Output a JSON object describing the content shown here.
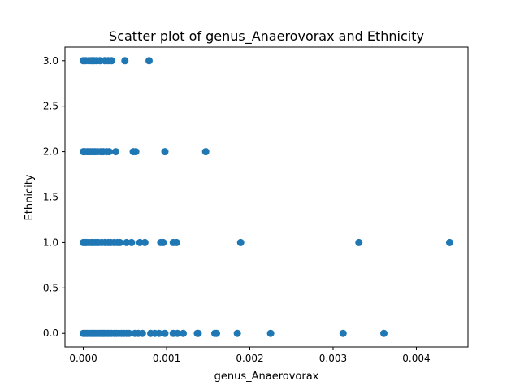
{
  "chart_data": {
    "type": "scatter",
    "title": "Scatter plot of genus_Anaerovorax and Ethnicity",
    "xlabel": "genus_Anaerovorax",
    "ylabel": "Ethnicity",
    "xlim": [
      -0.00022,
      0.00462
    ],
    "ylim": [
      -0.15,
      3.15
    ],
    "x_ticks": [
      0.0,
      0.001,
      0.002,
      0.003,
      0.004
    ],
    "x_tick_labels": [
      "0.000",
      "0.001",
      "0.002",
      "0.003",
      "0.004"
    ],
    "y_ticks": [
      0.0,
      0.5,
      1.0,
      1.5,
      2.0,
      2.5,
      3.0
    ],
    "y_tick_labels": [
      "0.0",
      "0.5",
      "1.0",
      "1.5",
      "2.0",
      "2.5",
      "3.0"
    ],
    "grid": false,
    "color": "#1f77b4",
    "points": [
      {
        "x": 0.0,
        "y": 3
      },
      {
        "x": 3e-05,
        "y": 3
      },
      {
        "x": 7e-05,
        "y": 3
      },
      {
        "x": 0.0001,
        "y": 3
      },
      {
        "x": 0.00013,
        "y": 3
      },
      {
        "x": 0.00016,
        "y": 3
      },
      {
        "x": 0.0002,
        "y": 3
      },
      {
        "x": 0.00026,
        "y": 3
      },
      {
        "x": 0.0003,
        "y": 3
      },
      {
        "x": 0.00034,
        "y": 3
      },
      {
        "x": 0.0005,
        "y": 3
      },
      {
        "x": 0.00079,
        "y": 3
      },
      {
        "x": 0.0,
        "y": 2
      },
      {
        "x": 2e-05,
        "y": 2
      },
      {
        "x": 5e-05,
        "y": 2
      },
      {
        "x": 8e-05,
        "y": 2
      },
      {
        "x": 0.00011,
        "y": 2
      },
      {
        "x": 0.00014,
        "y": 2
      },
      {
        "x": 0.00017,
        "y": 2
      },
      {
        "x": 0.00021,
        "y": 2
      },
      {
        "x": 0.00024,
        "y": 2
      },
      {
        "x": 0.00028,
        "y": 2
      },
      {
        "x": 0.00031,
        "y": 2
      },
      {
        "x": 0.00039,
        "y": 2
      },
      {
        "x": 0.0006,
        "y": 2
      },
      {
        "x": 0.00063,
        "y": 2
      },
      {
        "x": 0.00098,
        "y": 2
      },
      {
        "x": 0.00147,
        "y": 2
      },
      {
        "x": 0.0,
        "y": 1
      },
      {
        "x": 2e-05,
        "y": 1
      },
      {
        "x": 4e-05,
        "y": 1
      },
      {
        "x": 7e-05,
        "y": 1
      },
      {
        "x": 0.0001,
        "y": 1
      },
      {
        "x": 0.00012,
        "y": 1
      },
      {
        "x": 0.00015,
        "y": 1
      },
      {
        "x": 0.00018,
        "y": 1
      },
      {
        "x": 0.00022,
        "y": 1
      },
      {
        "x": 0.00026,
        "y": 1
      },
      {
        "x": 0.0003,
        "y": 1
      },
      {
        "x": 0.00033,
        "y": 1
      },
      {
        "x": 0.00037,
        "y": 1
      },
      {
        "x": 0.00041,
        "y": 1
      },
      {
        "x": 0.00044,
        "y": 1
      },
      {
        "x": 0.00052,
        "y": 1
      },
      {
        "x": 0.00058,
        "y": 1
      },
      {
        "x": 0.00068,
        "y": 1
      },
      {
        "x": 0.00074,
        "y": 1
      },
      {
        "x": 0.00093,
        "y": 1
      },
      {
        "x": 0.00096,
        "y": 1
      },
      {
        "x": 0.00108,
        "y": 1
      },
      {
        "x": 0.00112,
        "y": 1
      },
      {
        "x": 0.00189,
        "y": 1
      },
      {
        "x": 0.00331,
        "y": 1
      },
      {
        "x": 0.0044,
        "y": 1
      },
      {
        "x": 0.0,
        "y": 0
      },
      {
        "x": 1e-05,
        "y": 0
      },
      {
        "x": 3e-05,
        "y": 0
      },
      {
        "x": 5e-05,
        "y": 0
      },
      {
        "x": 7e-05,
        "y": 0
      },
      {
        "x": 9e-05,
        "y": 0
      },
      {
        "x": 0.00011,
        "y": 0
      },
      {
        "x": 0.00013,
        "y": 0
      },
      {
        "x": 0.00015,
        "y": 0
      },
      {
        "x": 0.00017,
        "y": 0
      },
      {
        "x": 0.00019,
        "y": 0
      },
      {
        "x": 0.00021,
        "y": 0
      },
      {
        "x": 0.00023,
        "y": 0
      },
      {
        "x": 0.00025,
        "y": 0
      },
      {
        "x": 0.00027,
        "y": 0
      },
      {
        "x": 0.00029,
        "y": 0
      },
      {
        "x": 0.00031,
        "y": 0
      },
      {
        "x": 0.00034,
        "y": 0
      },
      {
        "x": 0.00037,
        "y": 0
      },
      {
        "x": 0.0004,
        "y": 0
      },
      {
        "x": 0.00043,
        "y": 0
      },
      {
        "x": 0.00046,
        "y": 0
      },
      {
        "x": 0.00049,
        "y": 0
      },
      {
        "x": 0.00052,
        "y": 0
      },
      {
        "x": 0.00055,
        "y": 0
      },
      {
        "x": 0.00062,
        "y": 0
      },
      {
        "x": 0.00066,
        "y": 0
      },
      {
        "x": 0.00071,
        "y": 0
      },
      {
        "x": 0.00081,
        "y": 0
      },
      {
        "x": 0.00086,
        "y": 0
      },
      {
        "x": 0.00091,
        "y": 0
      },
      {
        "x": 0.00098,
        "y": 0
      },
      {
        "x": 0.00108,
        "y": 0
      },
      {
        "x": 0.00113,
        "y": 0
      },
      {
        "x": 0.0012,
        "y": 0
      },
      {
        "x": 0.00137,
        "y": 0
      },
      {
        "x": 0.00138,
        "y": 0
      },
      {
        "x": 0.00158,
        "y": 0
      },
      {
        "x": 0.0016,
        "y": 0
      },
      {
        "x": 0.00185,
        "y": 0
      },
      {
        "x": 0.00225,
        "y": 0
      },
      {
        "x": 0.00312,
        "y": 0
      },
      {
        "x": 0.00361,
        "y": 0
      }
    ]
  }
}
